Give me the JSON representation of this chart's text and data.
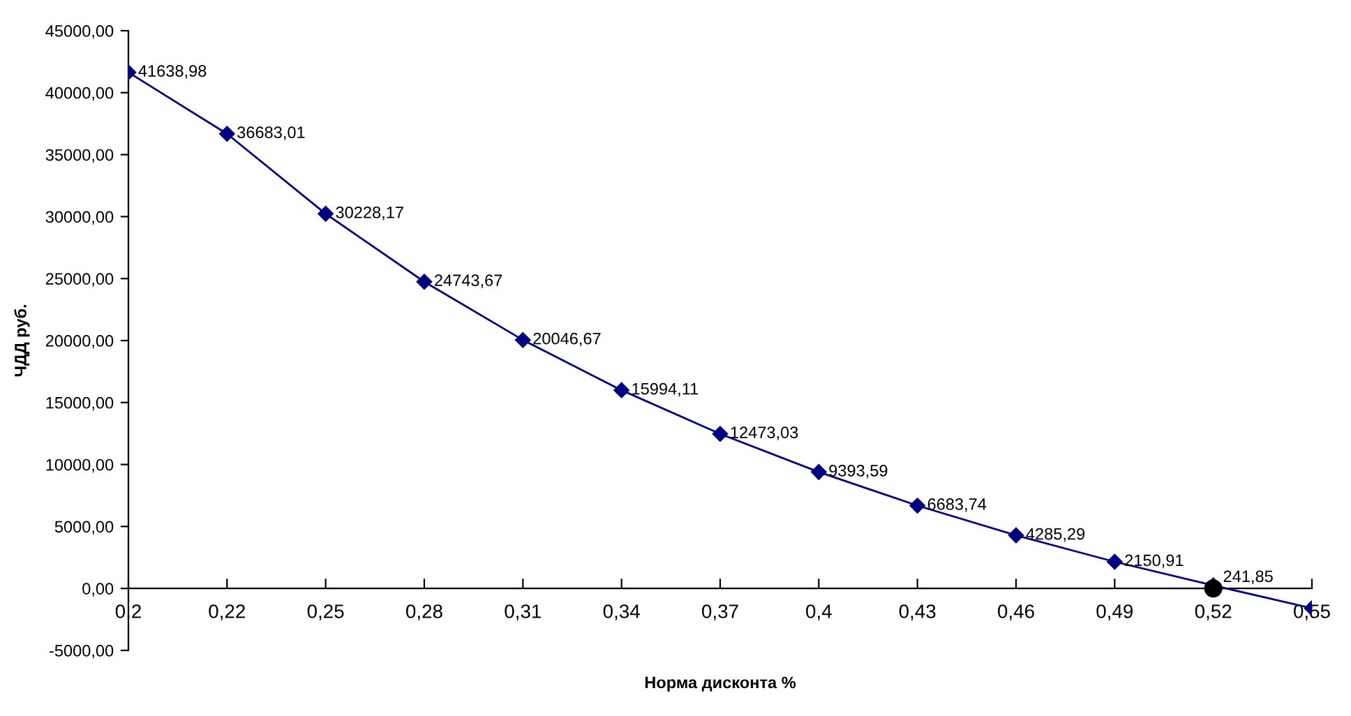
{
  "chart_data": {
    "type": "line",
    "xlabel": "Норма дисконта %",
    "ylabel": "ЧДД руб.",
    "categories": [
      "0,2",
      "0,22",
      "0,25",
      "0,28",
      "0,31",
      "0,34",
      "0,37",
      "0,4",
      "0,43",
      "0,46",
      "0,49",
      "0,52",
      "0,55"
    ],
    "series": [
      {
        "color": "#000080",
        "marker": "diamond",
        "values": [
          41638.98,
          36683.01,
          30228.17,
          24743.67,
          20046.67,
          15994.11,
          12473.03,
          9393.59,
          6683.74,
          4285.29,
          2150.91,
          241.85,
          -1600
        ],
        "value_labels": [
          "41638,98",
          "36683,01",
          "30228,17",
          "24743,67",
          "20046,67",
          "15994,11",
          "12473,03",
          "9393,59",
          "6683,74",
          "4285,29",
          "2150,91",
          "241,85",
          null
        ]
      },
      {
        "type": "scatter",
        "color": "#000000",
        "marker": "circle",
        "x": [
          "0,52"
        ],
        "values": [
          0
        ]
      }
    ],
    "ylim": [
      -5000,
      45000
    ],
    "yticks": [
      {
        "value": -5000,
        "label": "-5000,00"
      },
      {
        "value": 0,
        "label": "0,00"
      },
      {
        "value": 5000,
        "label": "5000,00"
      },
      {
        "value": 10000,
        "label": "10000,00"
      },
      {
        "value": 15000,
        "label": "15000,00"
      },
      {
        "value": 20000,
        "label": "20000,00"
      },
      {
        "value": 25000,
        "label": "25000,00"
      },
      {
        "value": 30000,
        "label": "30000,00"
      },
      {
        "value": 35000,
        "label": "35000,00"
      },
      {
        "value": 40000,
        "label": "40000,00"
      },
      {
        "value": 45000,
        "label": "45000,00"
      }
    ],
    "grid": false,
    "legend": false
  }
}
